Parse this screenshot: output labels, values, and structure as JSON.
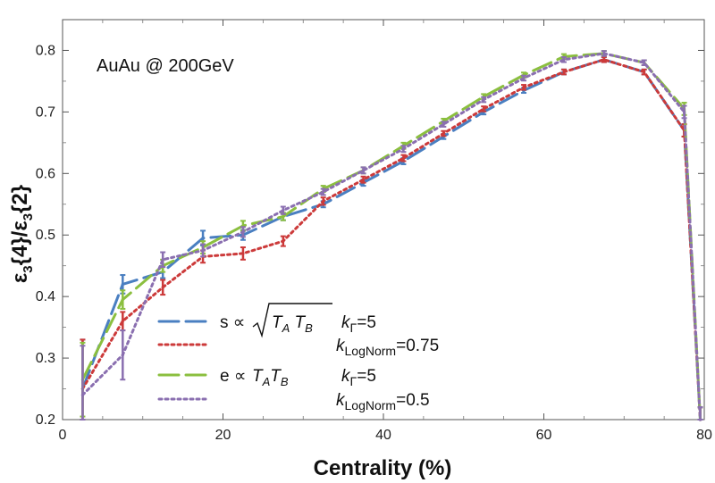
{
  "chart_data": {
    "type": "line",
    "annotation": "AuAu @ 200GeV",
    "xlabel": "Centrality (%)",
    "ylabel_parts": {
      "epsilon": "ε",
      "sub": "3",
      "num": "{4}/",
      "den": "{2}"
    },
    "xlim": [
      0,
      80
    ],
    "ylim": [
      0.2,
      0.85
    ],
    "xticks": [
      0,
      20,
      40,
      60,
      80
    ],
    "yticks": [
      0.2,
      0.3,
      0.4,
      0.5,
      0.6,
      0.7,
      0.8
    ],
    "x": [
      2.5,
      7.5,
      12.5,
      17.5,
      22.5,
      27.5,
      32.5,
      37.5,
      42.5,
      47.5,
      52.5,
      57.5,
      62.5,
      67.5,
      72.5,
      77.5,
      79.5
    ],
    "series": [
      {
        "name": "s_TATB_kGamma5",
        "label_main": "s ∝ ",
        "label_sqrt": "T_A T_B",
        "label_k": "k",
        "label_ksub": "Γ",
        "label_kval": "=5",
        "color": "#4a7fc1",
        "style": "long-dash",
        "values": [
          0.25,
          0.42,
          0.44,
          0.495,
          0.5,
          0.53,
          0.55,
          0.585,
          0.62,
          0.66,
          0.7,
          0.735,
          0.765,
          0.785,
          0.765,
          0.67,
          0.2
        ],
        "errors": [
          0.08,
          0.015,
          0.01,
          0.012,
          0.008,
          0.006,
          0.005,
          0.005,
          0.005,
          0.004,
          0.004,
          0.004,
          0.004,
          0.004,
          0.004,
          0.01,
          0.02
        ]
      },
      {
        "name": "s_TATB_LogNorm075",
        "label_k": "k",
        "label_ksub": "LogNorm",
        "label_kval": "=0.75",
        "color": "#cc3a3a",
        "style": "dot",
        "values": [
          0.25,
          0.36,
          0.415,
          0.465,
          0.47,
          0.49,
          0.555,
          0.59,
          0.625,
          0.665,
          0.705,
          0.74,
          0.765,
          0.785,
          0.765,
          0.67,
          0.2
        ],
        "errors": [
          0.08,
          0.015,
          0.012,
          0.01,
          0.01,
          0.008,
          0.006,
          0.005,
          0.005,
          0.004,
          0.004,
          0.004,
          0.004,
          0.004,
          0.004,
          0.01,
          0.02
        ]
      },
      {
        "name": "e_TATB_kGamma5",
        "label_main": "e ∝ ",
        "label_prod": "T_AT_B",
        "label_k": "k",
        "label_ksub": "Γ",
        "label_kval": "=5",
        "color": "#8bbf3f",
        "style": "long-dash",
        "values": [
          0.265,
          0.395,
          0.45,
          0.48,
          0.515,
          0.53,
          0.575,
          0.605,
          0.645,
          0.685,
          0.725,
          0.76,
          0.79,
          0.795,
          0.78,
          0.705,
          0.2
        ],
        "errors": [
          0.06,
          0.015,
          0.01,
          0.01,
          0.008,
          0.006,
          0.005,
          0.005,
          0.005,
          0.004,
          0.004,
          0.004,
          0.004,
          0.004,
          0.004,
          0.01,
          0.02
        ]
      },
      {
        "name": "e_TATB_LogNorm05",
        "label_k": "k",
        "label_ksub": "LogNorm",
        "label_kval": "=0.5",
        "color": "#8a6fb0",
        "style": "dot",
        "values": [
          0.24,
          0.305,
          0.46,
          0.475,
          0.505,
          0.54,
          0.57,
          0.605,
          0.64,
          0.68,
          0.72,
          0.755,
          0.785,
          0.795,
          0.78,
          0.7,
          0.2
        ],
        "errors": [
          0.08,
          0.04,
          0.012,
          0.01,
          0.008,
          0.006,
          0.005,
          0.005,
          0.005,
          0.004,
          0.004,
          0.004,
          0.004,
          0.004,
          0.004,
          0.01,
          0.02
        ]
      }
    ]
  }
}
